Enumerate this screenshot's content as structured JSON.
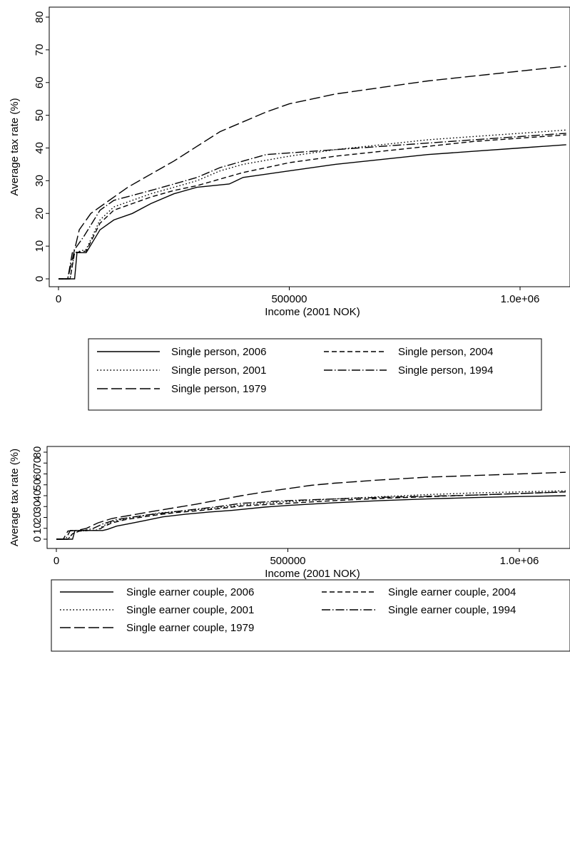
{
  "chart_data": [
    {
      "type": "line",
      "title": "",
      "xlabel": "Income (2001 NOK)",
      "ylabel": "Average tax rate (%)",
      "xlim": [
        0,
        1100000
      ],
      "ylim": [
        0,
        80
      ],
      "xtick_values": [
        0,
        500000,
        1000000
      ],
      "xtick_labels": [
        "0",
        "500000",
        "1.0e+06"
      ],
      "yticks": [
        0,
        10,
        20,
        30,
        40,
        50,
        60,
        70,
        80
      ],
      "grid": false,
      "legend_position": "bottom",
      "series": [
        {
          "name": "Single person, 2006",
          "style": "solid",
          "x": [
            0,
            35000,
            40000,
            60000,
            90000,
            120000,
            160000,
            200000,
            250000,
            300000,
            370000,
            400000,
            500000,
            600000,
            700000,
            800000,
            900000,
            1000000,
            1100000
          ],
          "y": [
            0,
            0,
            8,
            8,
            15,
            18,
            20,
            23,
            26,
            28,
            29,
            31,
            33,
            35,
            36.5,
            38,
            39,
            40,
            41
          ]
        },
        {
          "name": "Single person, 2004",
          "style": "dashed",
          "x": [
            0,
            25000,
            35000,
            60000,
            90000,
            120000,
            160000,
            200000,
            250000,
            300000,
            350000,
            400000,
            500000,
            600000,
            700000,
            800000,
            900000,
            1000000,
            1100000
          ],
          "y": [
            0,
            0,
            8,
            8.5,
            17,
            21,
            23,
            25,
            27,
            28.5,
            30.5,
            32.5,
            35.5,
            37.5,
            39,
            40.5,
            42,
            43,
            44
          ]
        },
        {
          "name": "Single person, 2001",
          "style": "dotted",
          "x": [
            0,
            25000,
            35000,
            60000,
            90000,
            120000,
            160000,
            200000,
            250000,
            300000,
            350000,
            400000,
            500000,
            600000,
            700000,
            800000,
            900000,
            1000000,
            1100000
          ],
          "y": [
            0,
            0,
            8,
            9,
            18,
            22,
            24,
            26,
            28,
            30,
            33,
            35,
            37.5,
            39.5,
            41,
            42.5,
            43.5,
            44.5,
            45.5
          ]
        },
        {
          "name": "Single person, 1994",
          "style": "dashdot",
          "x": [
            0,
            20000,
            30000,
            55000,
            90000,
            120000,
            160000,
            200000,
            250000,
            300000,
            350000,
            400000,
            450000,
            500000,
            600000,
            700000,
            800000,
            900000,
            1000000,
            1100000
          ],
          "y": [
            0,
            0,
            8,
            13,
            21,
            24,
            25.5,
            27,
            29,
            31,
            34,
            36,
            38,
            38.5,
            39.5,
            40.5,
            41.5,
            42.5,
            43.5,
            44.5
          ]
        },
        {
          "name": "Single person, 1979",
          "style": "longdash",
          "x": [
            0,
            20000,
            30000,
            45000,
            70000,
            100000,
            150000,
            200000,
            250000,
            300000,
            350000,
            400000,
            450000,
            500000,
            550000,
            600000,
            700000,
            800000,
            900000,
            1000000,
            1100000
          ],
          "y": [
            0,
            0,
            6,
            15,
            20,
            23,
            28,
            32,
            36,
            40.5,
            45,
            48,
            51,
            53.5,
            55,
            56.5,
            58.5,
            60.5,
            62,
            63.5,
            65
          ]
        }
      ]
    },
    {
      "type": "line",
      "title": "",
      "xlabel": "Income (2001 NOK)",
      "ylabel": "Average tax rate (%)",
      "xlim": [
        0,
        1100000
      ],
      "ylim": [
        0,
        80
      ],
      "xtick_values": [
        0,
        500000,
        1000000
      ],
      "xtick_labels": [
        "0",
        "500000",
        "1.0e+06"
      ],
      "yticks": [
        0,
        10,
        20,
        30,
        40,
        50,
        60,
        70,
        80
      ],
      "grid": false,
      "legend_position": "bottom",
      "series": [
        {
          "name": "Single earner couple, 2006",
          "style": "solid",
          "x": [
            0,
            35000,
            40000,
            70000,
            100000,
            110000,
            130000,
            160000,
            190000,
            230000,
            280000,
            330000,
            380000,
            450000,
            500000,
            600000,
            700000,
            800000,
            900000,
            1000000,
            1100000
          ],
          "y": [
            0,
            0,
            8,
            8,
            8,
            9,
            12,
            14.5,
            17,
            20.5,
            23,
            25,
            26.5,
            29.5,
            31,
            33.5,
            35.5,
            37,
            38.2,
            39.2,
            40
          ]
        },
        {
          "name": "Single earner couple, 2004",
          "style": "dashed",
          "x": [
            0,
            25000,
            35000,
            50000,
            70000,
            90000,
            100000,
            120000,
            150000,
            180000,
            220000,
            260000,
            300000,
            350000,
            400000,
            500000,
            600000,
            700000,
            800000,
            900000,
            1000000,
            1100000
          ],
          "y": [
            0,
            0,
            5,
            7.5,
            8,
            8,
            11,
            15,
            18,
            20,
            22.5,
            24.5,
            26,
            28,
            30.5,
            33,
            35.5,
            37.5,
            39,
            40.5,
            42,
            43.5
          ]
        },
        {
          "name": "Single earner couple, 2001",
          "style": "dotted",
          "x": [
            0,
            25000,
            35000,
            50000,
            70000,
            90000,
            100000,
            120000,
            150000,
            180000,
            220000,
            260000,
            300000,
            350000,
            400000,
            500000,
            600000,
            700000,
            800000,
            900000,
            1000000,
            1100000
          ],
          "y": [
            0,
            0,
            5,
            7.5,
            8,
            8.5,
            12,
            16,
            19,
            21,
            24,
            25.5,
            27,
            29,
            31.5,
            34.5,
            37,
            39,
            41,
            42.5,
            43.5,
            44.5
          ]
        },
        {
          "name": "Single earner couple, 1994",
          "style": "dashdot",
          "x": [
            0,
            20000,
            30000,
            60000,
            80000,
            100000,
            130000,
            160000,
            200000,
            250000,
            300000,
            350000,
            400000,
            500000,
            600000,
            700000,
            800000,
            900000,
            1000000,
            1100000
          ],
          "y": [
            0,
            0,
            8,
            8,
            10,
            14,
            18,
            20,
            22.5,
            25,
            27.5,
            30,
            33,
            35.5,
            37,
            38.5,
            39.5,
            40.5,
            42,
            43.5
          ]
        },
        {
          "name": "Single earner couple, 1979",
          "style": "longdash",
          "x": [
            0,
            15000,
            25000,
            45000,
            65000,
            90000,
            120000,
            160000,
            200000,
            250000,
            300000,
            350000,
            400000,
            450000,
            500000,
            550000,
            600000,
            700000,
            800000,
            900000,
            1000000,
            1100000
          ],
          "y": [
            0,
            0,
            7.5,
            8,
            10,
            15,
            19,
            22,
            25,
            28.5,
            32,
            36,
            40,
            43.5,
            46.5,
            49.5,
            51.5,
            54.5,
            57,
            58.5,
            60,
            61.5
          ]
        }
      ]
    }
  ]
}
